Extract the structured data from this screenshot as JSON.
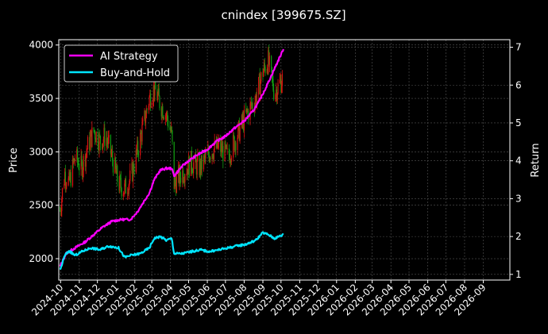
{
  "chart_data": {
    "type": "line",
    "title": "cnindex [399675.SZ]",
    "xlabel": "",
    "ylabel_left": "Price",
    "ylabel_right": "Return",
    "x_ticks": [
      "2024-10",
      "2024-11",
      "2024-12",
      "2025-01",
      "2025-02",
      "2025-03",
      "2025-04",
      "2025-05",
      "2025-06",
      "2025-07",
      "2025-08",
      "2025-09",
      "2025-10",
      "2025-11",
      "2025-12",
      "2026-01",
      "2026-02",
      "2026-03",
      "2026-04",
      "2026-05",
      "2026-06",
      "2026-07",
      "2026-08",
      "2026-09"
    ],
    "xlim": [
      "2024-09-28",
      "2026-10-15"
    ],
    "left_axis": {
      "ylim": [
        1800,
        4050
      ],
      "ticks": [
        2000,
        2500,
        3000,
        3500,
        4000
      ]
    },
    "right_axis": {
      "ylim": [
        0.85,
        7.2
      ],
      "ticks": [
        1,
        2,
        3,
        4,
        5,
        6,
        7
      ]
    },
    "grid": true,
    "legend_position": "top-left",
    "colors": {
      "up": "#dd1111",
      "down": "#119911",
      "ai": "#ff00ff",
      "bh": "#00e5ff",
      "grid": "#555555",
      "background": "#000000"
    },
    "series": [
      {
        "name": "AI Strategy",
        "axis": "right",
        "dates": [
          "2024-09-30",
          "2024-10-10",
          "2024-10-25",
          "2024-11-10",
          "2024-11-25",
          "2024-12-10",
          "2024-12-25",
          "2025-01-10",
          "2025-01-25",
          "2025-02-05",
          "2025-02-15",
          "2025-02-25",
          "2025-03-05",
          "2025-03-15",
          "2025-03-25",
          "2025-04-03",
          "2025-04-07",
          "2025-04-20",
          "2025-05-01",
          "2025-05-15",
          "2025-06-01",
          "2025-06-15",
          "2025-07-01",
          "2025-07-15",
          "2025-08-01",
          "2025-08-15",
          "2025-08-25",
          "2025-09-05",
          "2025-09-15",
          "2025-09-25",
          "2025-10-05"
        ],
        "values": [
          1.2,
          1.55,
          1.7,
          1.85,
          2.05,
          2.25,
          2.4,
          2.45,
          2.45,
          2.65,
          2.9,
          3.15,
          3.5,
          3.75,
          3.8,
          3.8,
          3.6,
          3.85,
          4.0,
          4.15,
          4.3,
          4.5,
          4.65,
          4.85,
          5.05,
          5.3,
          5.55,
          5.9,
          6.25,
          6.6,
          6.95
        ]
      },
      {
        "name": "Buy-and-Hold",
        "axis": "right",
        "dates": [
          "2024-09-30",
          "2024-10-08",
          "2024-10-15",
          "2024-10-25",
          "2024-11-05",
          "2024-11-20",
          "2024-12-05",
          "2024-12-20",
          "2025-01-05",
          "2025-01-15",
          "2025-01-25",
          "2025-02-10",
          "2025-02-25",
          "2025-03-05",
          "2025-03-15",
          "2025-03-25",
          "2025-04-03",
          "2025-04-07",
          "2025-04-20",
          "2025-05-05",
          "2025-05-20",
          "2025-06-05",
          "2025-06-20",
          "2025-07-05",
          "2025-07-20",
          "2025-08-05",
          "2025-08-20",
          "2025-09-01",
          "2025-09-10",
          "2025-09-20",
          "2025-10-05"
        ],
        "values": [
          1.1,
          1.5,
          1.62,
          1.5,
          1.6,
          1.7,
          1.65,
          1.75,
          1.7,
          1.45,
          1.5,
          1.55,
          1.7,
          1.95,
          2.0,
          1.9,
          1.95,
          1.55,
          1.55,
          1.6,
          1.65,
          1.6,
          1.65,
          1.7,
          1.75,
          1.8,
          1.9,
          2.1,
          2.05,
          1.95,
          2.05
        ]
      },
      {
        "name": "Price",
        "axis": "left",
        "kind": "candlestick-ribbon",
        "dates": [
          "2024-09-30",
          "2024-10-08",
          "2024-10-15",
          "2024-10-25",
          "2024-11-05",
          "2024-11-15",
          "2024-11-25",
          "2024-12-05",
          "2024-12-15",
          "2024-12-25",
          "2025-01-05",
          "2025-01-15",
          "2025-01-25",
          "2025-02-05",
          "2025-02-15",
          "2025-02-25",
          "2025-03-05",
          "2025-03-15",
          "2025-03-25",
          "2025-04-03",
          "2025-04-07",
          "2025-04-20",
          "2025-05-05",
          "2025-05-20",
          "2025-06-05",
          "2025-06-20",
          "2025-07-05",
          "2025-07-20",
          "2025-08-05",
          "2025-08-20",
          "2025-09-01",
          "2025-09-10",
          "2025-09-20",
          "2025-10-05"
        ],
        "values": [
          2450,
          2800,
          2700,
          2950,
          2850,
          3050,
          3200,
          3100,
          3150,
          2950,
          2700,
          2650,
          2750,
          3000,
          3250,
          3500,
          3600,
          3450,
          3350,
          3150,
          2700,
          2800,
          2900,
          2850,
          3000,
          3050,
          2950,
          3150,
          3350,
          3500,
          3750,
          3850,
          3550,
          3700
        ]
      }
    ]
  }
}
